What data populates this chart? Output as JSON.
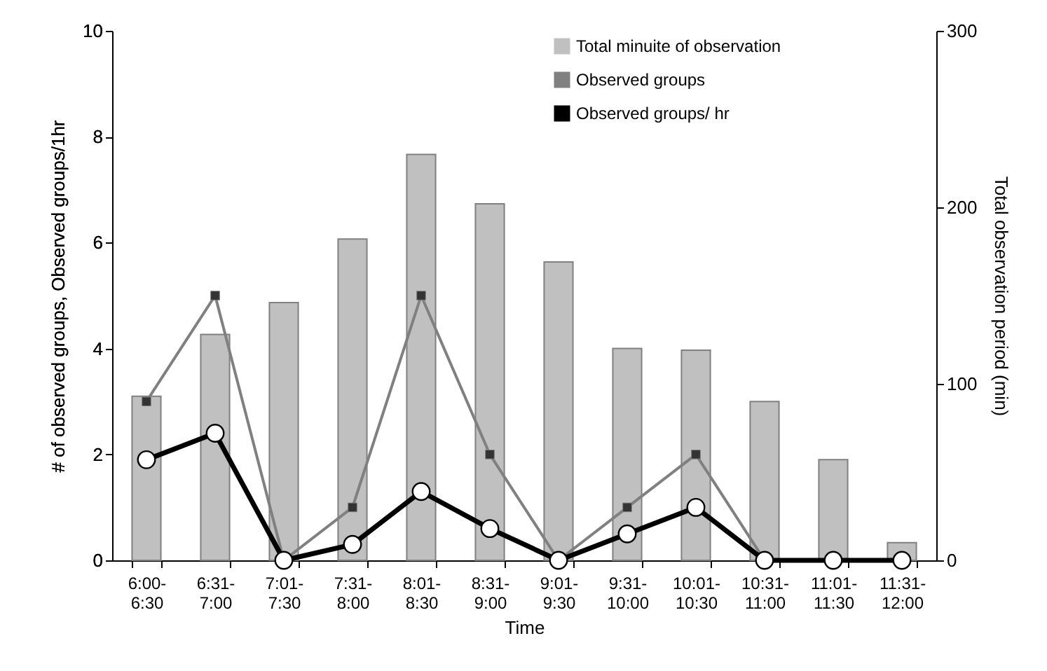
{
  "chart_data": {
    "type": "bar",
    "xlabel": "Time",
    "ylabel": "# of observed groups, Observed groups/1hr",
    "y2label": "Total observation period (min)",
    "categories": [
      "6:00-6:30",
      "6:31-7:00",
      "7:01-7:30",
      "7:31-8:00",
      "8:01-8:30",
      "8:31-9:00",
      "9:01-9:30",
      "9:31-10:00",
      "10:01-10:30",
      "10:31-11:00",
      "11:01-11:30",
      "11:31-12:00"
    ],
    "series": [
      {
        "name": "Total minuite of observation",
        "axis": "y2",
        "color": "#c0c0c0",
        "values": [
          93,
          128,
          146,
          182,
          230,
          202,
          169,
          120,
          119,
          90,
          57,
          10
        ]
      },
      {
        "name": "Observed groups",
        "type": "line",
        "color": "#808080",
        "marker": "square",
        "values": [
          3,
          5,
          0,
          1,
          5,
          2,
          0,
          1,
          2,
          0,
          0,
          0
        ]
      },
      {
        "name": "Observed groups/ hr",
        "type": "line",
        "color": "#000000",
        "marker": "circle",
        "values": [
          1.9,
          2.4,
          0,
          0.3,
          1.3,
          0.6,
          0,
          0.5,
          1.0,
          0,
          0,
          0
        ]
      }
    ],
    "ylim": [
      0,
      10
    ],
    "yticks": [
      0,
      2,
      4,
      6,
      8,
      10
    ],
    "y2lim": [
      0,
      300
    ],
    "y2ticks": [
      0,
      100,
      200,
      300
    ],
    "legend": "top right",
    "grid": false
  }
}
